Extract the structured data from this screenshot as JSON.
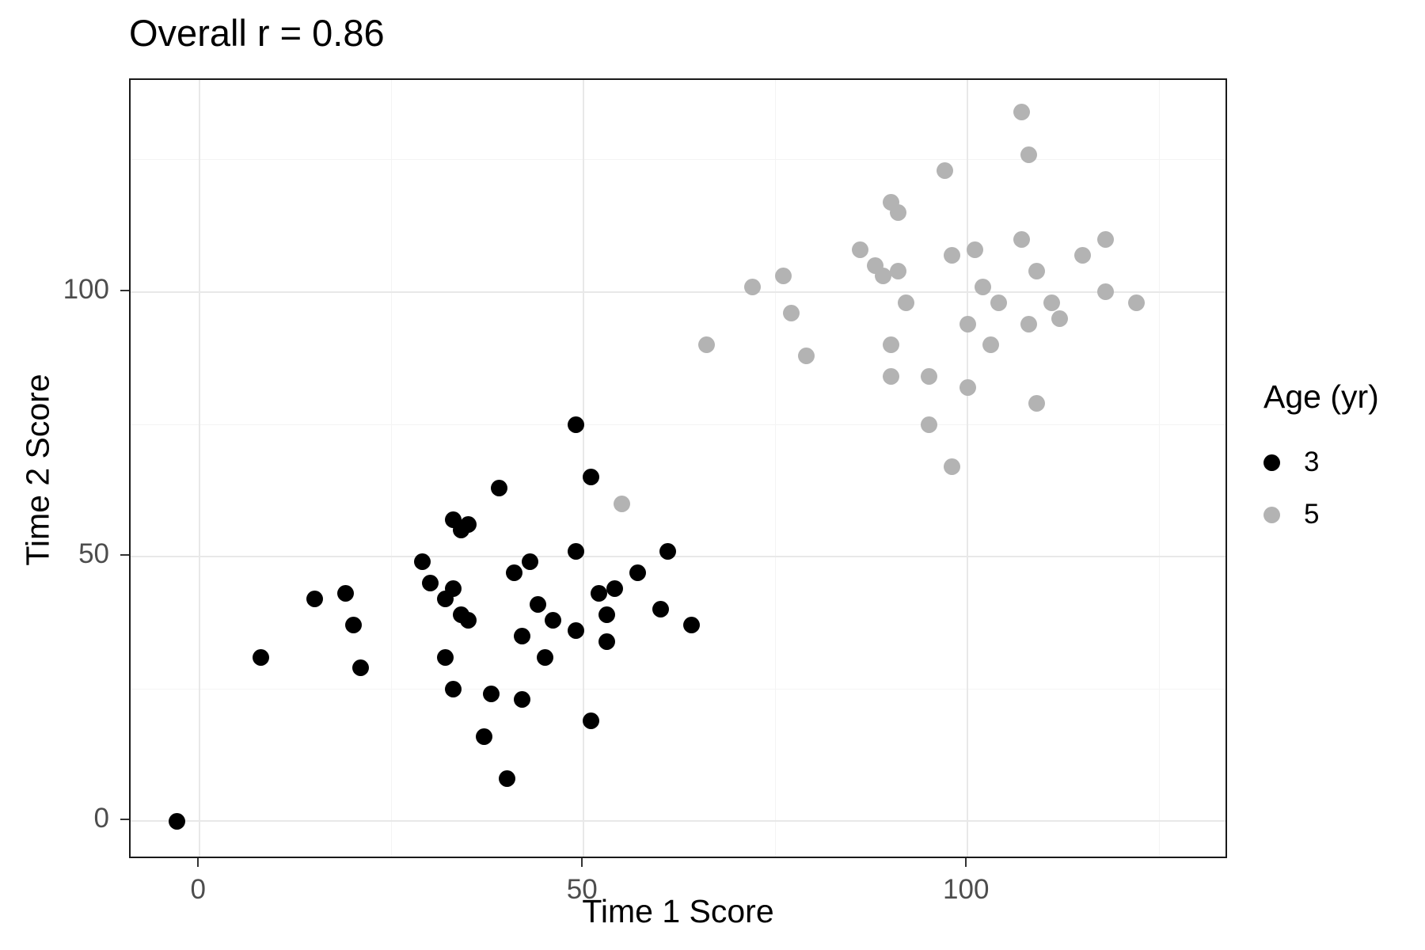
{
  "title": "Overall r = 0.86",
  "x_axis": {
    "label": "Time 1 Score",
    "ticks": [
      {
        "value": 0,
        "label": "0"
      },
      {
        "value": 50,
        "label": "50"
      },
      {
        "value": 100,
        "label": "100"
      }
    ]
  },
  "y_axis": {
    "label": "Time 2 Score",
    "ticks": [
      {
        "value": 0,
        "label": "0"
      },
      {
        "value": 50,
        "label": "50"
      },
      {
        "value": 100,
        "label": "100"
      }
    ]
  },
  "legend": {
    "title": "Age (yr)",
    "items": [
      {
        "label": "3",
        "color": "#000000"
      },
      {
        "label": "5",
        "color": "#b3b3b3"
      }
    ]
  },
  "chart_data": {
    "type": "scatter",
    "title": "Overall r = 0.86",
    "xlabel": "Time 1 Score",
    "ylabel": "Time 2 Score",
    "xlim": [
      -9,
      134
    ],
    "ylim": [
      -7.3,
      140.1
    ],
    "grid": "on",
    "legend_position": "right",
    "x_major": [
      0,
      50,
      100
    ],
    "x_minor": [
      25,
      75,
      125
    ],
    "y_major": [
      0,
      50,
      100
    ],
    "y_minor": [
      25,
      75,
      125
    ],
    "series": [
      {
        "name": "3",
        "color": "#000000",
        "points": [
          [
            -3,
            0
          ],
          [
            8,
            31
          ],
          [
            15,
            42
          ],
          [
            19,
            43
          ],
          [
            20,
            37
          ],
          [
            21,
            29
          ],
          [
            29,
            49
          ],
          [
            30,
            45
          ],
          [
            32,
            42
          ],
          [
            33,
            44
          ],
          [
            33,
            57
          ],
          [
            34,
            55
          ],
          [
            32,
            31
          ],
          [
            33,
            25
          ],
          [
            35,
            56
          ],
          [
            34,
            39
          ],
          [
            35,
            38
          ],
          [
            37,
            16
          ],
          [
            38,
            24
          ],
          [
            39,
            63
          ],
          [
            40,
            8
          ],
          [
            41,
            47
          ],
          [
            42,
            23
          ],
          [
            42,
            35
          ],
          [
            43,
            49
          ],
          [
            44,
            41
          ],
          [
            45,
            31
          ],
          [
            46,
            38
          ],
          [
            49,
            36
          ],
          [
            49,
            75
          ],
          [
            49,
            51
          ],
          [
            51,
            65
          ],
          [
            51,
            19
          ],
          [
            52,
            43
          ],
          [
            53,
            39
          ],
          [
            54,
            44
          ],
          [
            53,
            34
          ],
          [
            57,
            47
          ],
          [
            60,
            40
          ],
          [
            61,
            51
          ],
          [
            64,
            37
          ]
        ]
      },
      {
        "name": "5",
        "color": "#b3b3b3",
        "points": [
          [
            55,
            60
          ],
          [
            66,
            90
          ],
          [
            72,
            101
          ],
          [
            76,
            103
          ],
          [
            77,
            96
          ],
          [
            79,
            88
          ],
          [
            86,
            108
          ],
          [
            88,
            105
          ],
          [
            89,
            103
          ],
          [
            90,
            90
          ],
          [
            90,
            117
          ],
          [
            91,
            115
          ],
          [
            91,
            104
          ],
          [
            90,
            84
          ],
          [
            92,
            98
          ],
          [
            95,
            75
          ],
          [
            95,
            84
          ],
          [
            97,
            123
          ],
          [
            98,
            67
          ],
          [
            98,
            107
          ],
          [
            100,
            94
          ],
          [
            100,
            82
          ],
          [
            101,
            108
          ],
          [
            102,
            101
          ],
          [
            103,
            90
          ],
          [
            104,
            98
          ],
          [
            107,
            134
          ],
          [
            107,
            110
          ],
          [
            108,
            126
          ],
          [
            108,
            94
          ],
          [
            109,
            104
          ],
          [
            109,
            79
          ],
          [
            111,
            98
          ],
          [
            112,
            95
          ],
          [
            115,
            107
          ],
          [
            118,
            110
          ],
          [
            118,
            100
          ],
          [
            122,
            98
          ]
        ]
      }
    ]
  }
}
